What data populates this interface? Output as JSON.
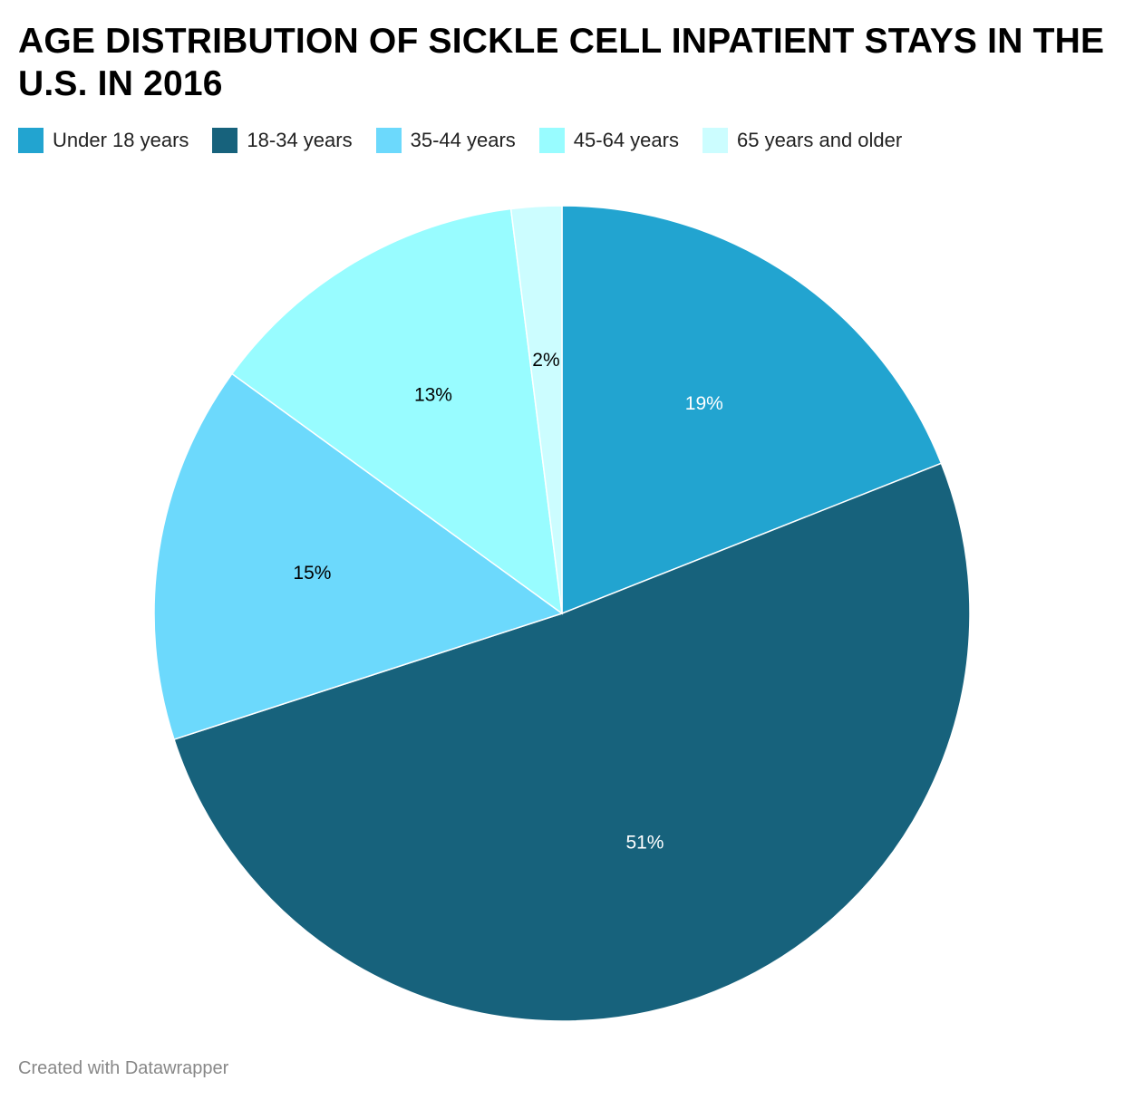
{
  "title": "AGE DISTRIBUTION OF SICKLE CELL INPATIENT STAYS IN THE U.S. IN 2016",
  "legend": [
    {
      "label": "Under 18 years",
      "color": "#22a4d0"
    },
    {
      "label": "18-34 years",
      "color": "#17627c"
    },
    {
      "label": "35-44 years",
      "color": "#6cd9fc"
    },
    {
      "label": "45-64 years",
      "color": "#98fcff"
    },
    {
      "label": "65 years and older",
      "color": "#ccfdff"
    }
  ],
  "chart_data": {
    "type": "pie",
    "title": "AGE DISTRIBUTION OF SICKLE CELL INPATIENT STAYS IN THE U.S. IN 2016",
    "categories": [
      "Under 18 years",
      "18-34 years",
      "35-44 years",
      "45-64 years",
      "65 years and older"
    ],
    "values": [
      19,
      51,
      15,
      13,
      2
    ],
    "labels": [
      "19%",
      "51%",
      "15%",
      "13%",
      "2%"
    ],
    "colors": [
      "#22a4d0",
      "#17627c",
      "#6cd9fc",
      "#98fcff",
      "#ccfdff"
    ],
    "label_colors": [
      "#ffffff",
      "#ffffff",
      "#000000",
      "#000000",
      "#000000"
    ],
    "legend_position": "top-left",
    "start": "12 o'clock, clockwise"
  },
  "footer": "Created with Datawrapper"
}
